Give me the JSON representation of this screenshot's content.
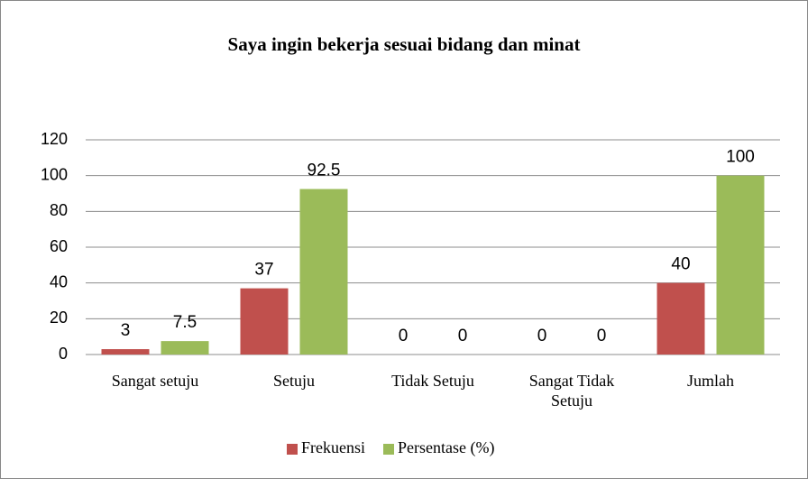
{
  "chart_data": {
    "type": "bar",
    "title": "Saya ingin bekerja sesuai bidang dan minat",
    "categories": [
      "Sangat setuju",
      "Setuju",
      "Tidak Setuju",
      "Sangat Tidak Setuju",
      "Jumlah"
    ],
    "series": [
      {
        "name": "Frekuensi",
        "color": "#c0504d",
        "values": [
          3,
          37,
          0,
          0,
          40
        ]
      },
      {
        "name": "Persentase (%)",
        "color": "#9bbb59",
        "values": [
          7.5,
          92.5,
          0,
          0,
          100
        ]
      }
    ],
    "ylim": [
      0,
      120
    ],
    "yticks": [
      0,
      20,
      40,
      60,
      80,
      100,
      120
    ],
    "grid": true,
    "legend": "bottom"
  }
}
